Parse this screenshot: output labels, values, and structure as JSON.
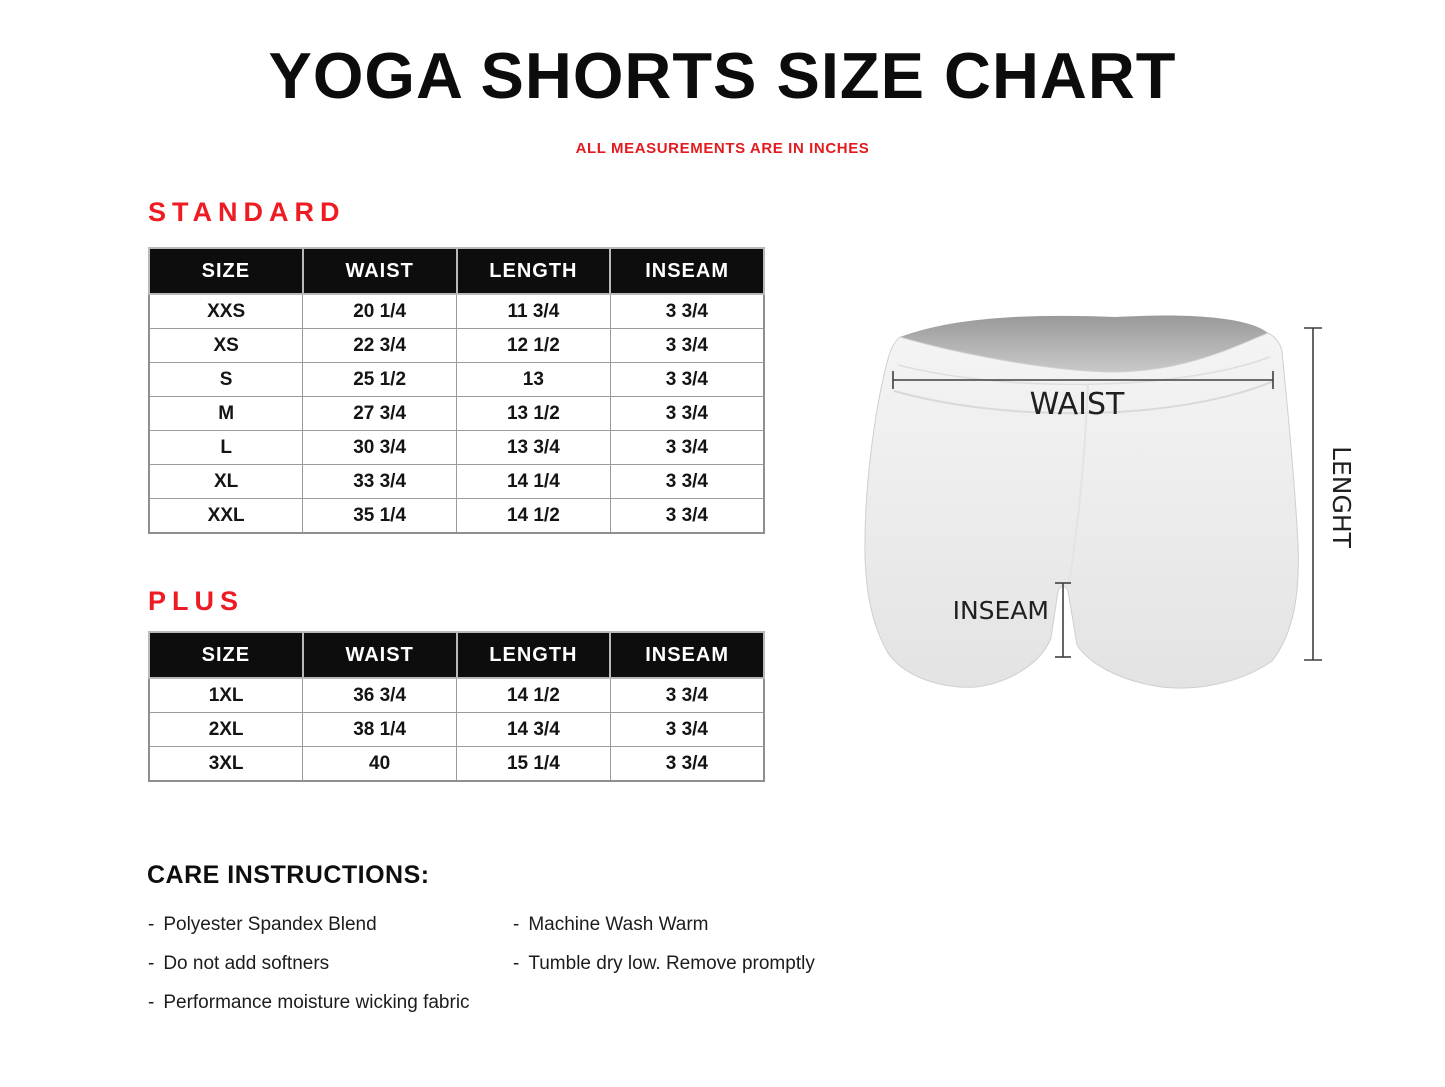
{
  "page": {
    "title": "YOGA SHORTS SIZE CHART",
    "subtitle": "ALL MEASUREMENTS ARE IN INCHES"
  },
  "colors": {
    "accent_red": "#EE1B22",
    "table_header_bg": "#0D0D0D",
    "table_border": "#9B9B9B",
    "shorts_fill": "#EDEDED"
  },
  "sections": {
    "standard": {
      "heading": "STANDARD"
    },
    "plus": {
      "heading": "PLUS"
    }
  },
  "tables": {
    "standard": {
      "columns": [
        "SIZE",
        "WAIST",
        "LENGTH",
        "INSEAM"
      ],
      "rows": [
        [
          "XXS",
          "20 1/4",
          "11 3/4",
          "3 3/4"
        ],
        [
          "XS",
          "22 3/4",
          "12 1/2",
          "3 3/4"
        ],
        [
          "S",
          "25 1/2",
          "13",
          "3 3/4"
        ],
        [
          "M",
          "27 3/4",
          "13 1/2",
          "3 3/4"
        ],
        [
          "L",
          "30 3/4",
          "13 3/4",
          "3 3/4"
        ],
        [
          "XL",
          "33 3/4",
          "14 1/4",
          "3 3/4"
        ],
        [
          "XXL",
          "35 1/4",
          "14 1/2",
          "3 3/4"
        ]
      ]
    },
    "plus": {
      "columns": [
        "SIZE",
        "WAIST",
        "LENGTH",
        "INSEAM"
      ],
      "rows": [
        [
          "1XL",
          "36 3/4",
          "14 1/2",
          "3 3/4"
        ],
        [
          "2XL",
          "38 1/4",
          "14 3/4",
          "3 3/4"
        ],
        [
          "3XL",
          "40",
          "15 1/4",
          "3 3/4"
        ]
      ]
    }
  },
  "figure": {
    "waist_label": "WAIST",
    "inseam_label": "INSEAM",
    "length_label": "LENGHT"
  },
  "care": {
    "heading": "CARE INSTRUCTIONS:",
    "bullet": "-",
    "left": [
      "Polyester Spandex Blend",
      "Do not add softners",
      "Performance moisture wicking fabric"
    ],
    "right": [
      "Machine Wash Warm",
      "Tumble dry low. Remove promptly"
    ]
  }
}
